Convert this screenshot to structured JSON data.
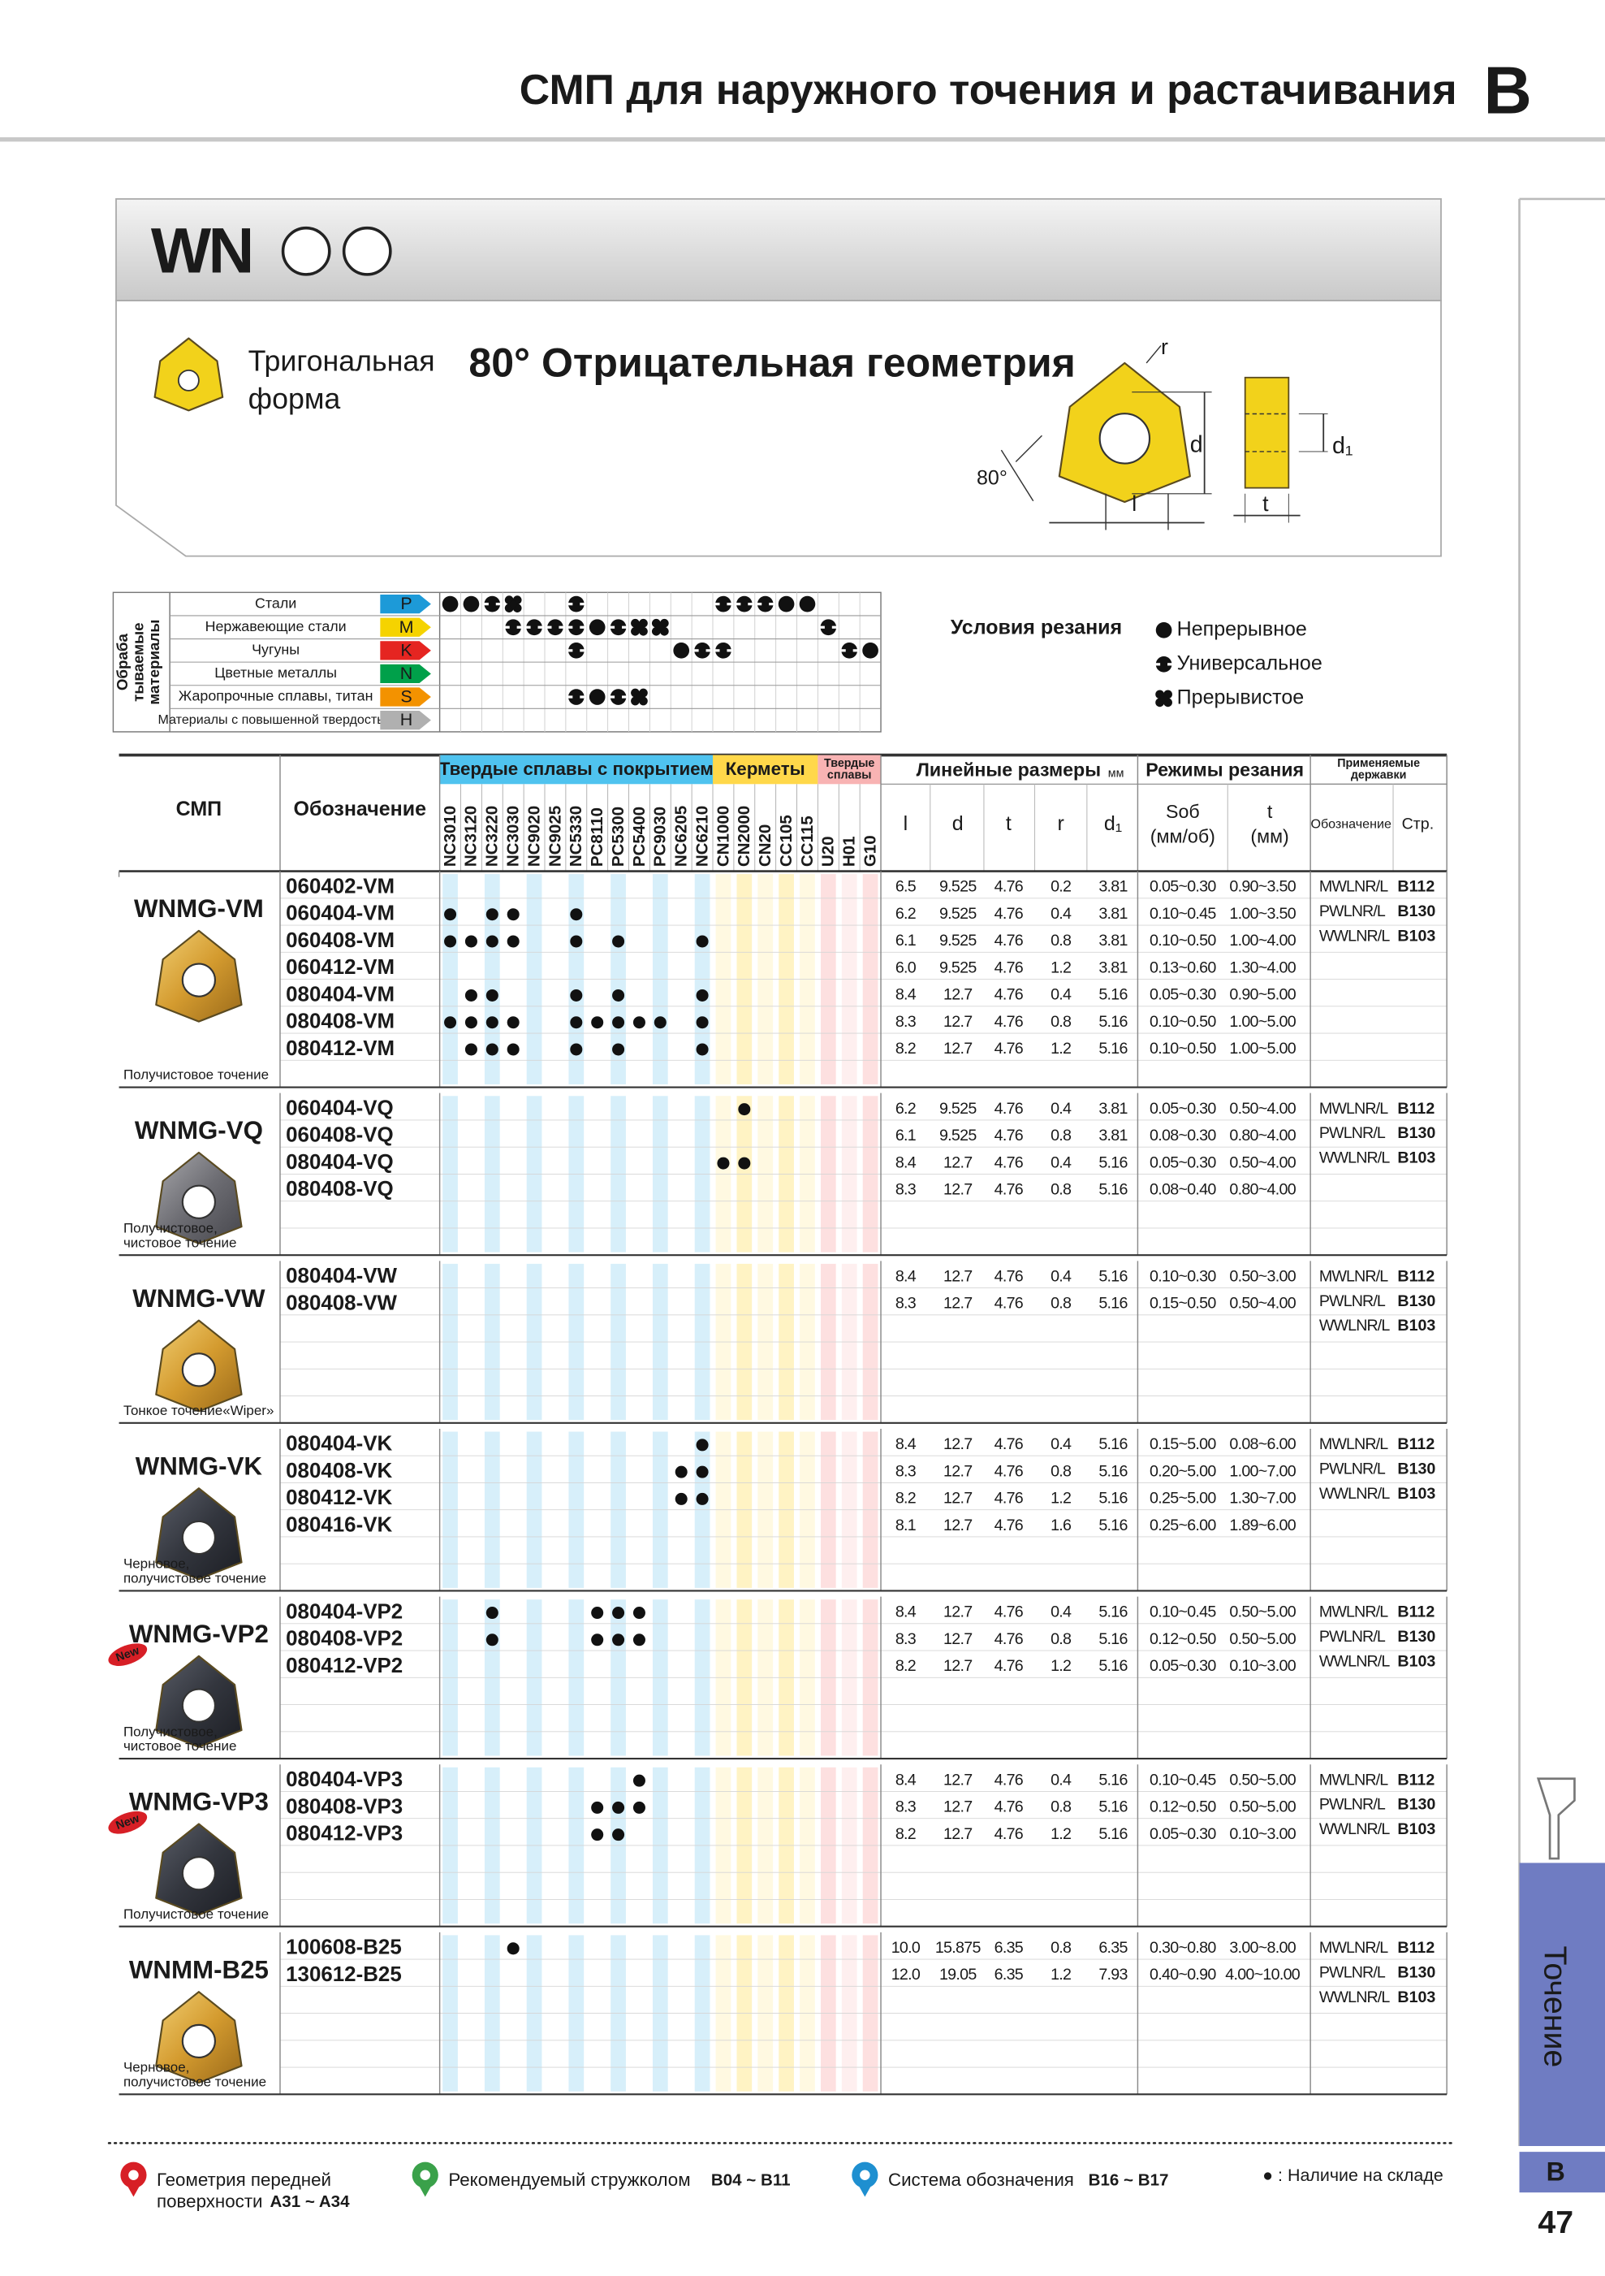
{
  "header": {
    "title": "СМП для наружного точения и растачивания",
    "section": "B"
  },
  "product": {
    "series": "WN",
    "shape": [
      "Тригональная",
      "форма"
    ],
    "geometry": "80° Отрицательная геометрия",
    "diagram": {
      "r": "r",
      "d": "d",
      "d1": "d₁",
      "angle": "80°",
      "l": "l",
      "t": "t"
    }
  },
  "materials": {
    "label": [
      "Обраба",
      "тываемые",
      "материалы"
    ],
    "rows": [
      {
        "name": "Стали",
        "code": "P",
        "conditions": {
          "NC3010": "Непрерывное",
          "NC3120": "Непрерывное",
          "NC3220": "Универсальное",
          "NC3030": "Прерывистое",
          "NC5330": "Универсальное",
          "CN1000": "Универсальное",
          "CN2000": "Универсальное",
          "CN20": "Универсальное",
          "CC105": "Непрерывное",
          "CC115": "Непрерывное"
        }
      },
      {
        "name": "Нержавеющие стали",
        "code": "M",
        "conditions": {
          "NC3030": "Универсальное",
          "NC9020": "Универсальное",
          "NC9025": "Универсальное",
          "NC5330": "Универсальное",
          "PC8110": "Непрерывное",
          "PC5300": "Универсальное",
          "PC5400": "Прерывистое",
          "PC9030": "Прерывистое",
          "U20": "Универсальное"
        }
      },
      {
        "name": "Чугуны",
        "code": "K",
        "conditions": {
          "NC5330": "Универсальное",
          "NC6205": "Непрерывное",
          "NC6210": "Универсальное",
          "CN1000": "Универсальное",
          "H01": "Универсальное",
          "G10": "Непрерывное"
        }
      },
      {
        "name": "Цветные металлы",
        "code": "N",
        "conditions": {}
      },
      {
        "name": "Жаропрочные сплавы, титан",
        "code": "S",
        "conditions": {
          "NC5330": "Универсальное",
          "PC8110": "Непрерывное",
          "PC5300": "Универсальное",
          "PC5400": "Прерывистое"
        }
      },
      {
        "name": "Материалы с повышенной твердостью",
        "code": "H",
        "conditions": {}
      }
    ]
  },
  "conditions": {
    "title": "Условия резания",
    "legend": [
      "Непрерывное",
      "Универсальное",
      "Прерывистое"
    ]
  },
  "table": {
    "col_insert": "СМП",
    "col_code": "Обозначение",
    "groups": [
      {
        "name": "Твердые сплавы с покрытием",
        "count": 13
      },
      {
        "name": "Керметы",
        "count": 5
      },
      {
        "name": [
          "Твердые",
          "сплавы"
        ],
        "count": 3
      }
    ],
    "grades": [
      "NC3010",
      "NC3120",
      "NC3220",
      "NC3030",
      "NC9020",
      "NC9025",
      "NC5330",
      "PC8110",
      "PC5300",
      "PC5400",
      "PC9030",
      "NC6205",
      "NC6210",
      "CN1000",
      "CN2000",
      "CN20",
      "CC105",
      "CC115",
      "U20",
      "H01",
      "G10"
    ],
    "dims_title": "Линейные размеры",
    "dims_unit": "мм",
    "dims": [
      "l",
      "d",
      "t",
      "r",
      "d₁"
    ],
    "cutting_title": "Режимы резания",
    "feed": [
      "Sоб",
      "(мм/об)"
    ],
    "depth": [
      "t",
      "(мм)"
    ],
    "holders_title": [
      "Применяемые",
      "державки"
    ],
    "holder_code": "Обозначение",
    "holder_page": "Стр."
  },
  "inserts": [
    {
      "name": "WNMG-VM",
      "color": "gold",
      "desc": [
        "Получистовое точение"
      ],
      "holders": [
        [
          "MWLNR/L",
          "B112"
        ],
        [
          "PWLNR/L",
          "B130"
        ],
        [
          "WWLNR/L",
          "B103"
        ]
      ],
      "rows": [
        {
          "code": "060402-VM",
          "l": "6.5",
          "d": "9.525",
          "t": "4.76",
          "r": "0.2",
          "d1": "3.81",
          "feed": "0.05~0.30",
          "depth": "0.90~3.50",
          "stock": []
        },
        {
          "code": "060404-VM",
          "l": "6.2",
          "d": "9.525",
          "t": "4.76",
          "r": "0.4",
          "d1": "3.81",
          "feed": "0.10~0.45",
          "depth": "1.00~3.50",
          "stock": [
            "NC3010",
            "NC3220",
            "NC3030",
            "NC5330"
          ]
        },
        {
          "code": "060408-VM",
          "l": "6.1",
          "d": "9.525",
          "t": "4.76",
          "r": "0.8",
          "d1": "3.81",
          "feed": "0.10~0.50",
          "depth": "1.00~4.00",
          "stock": [
            "NC3010",
            "NC3120",
            "NC3220",
            "NC3030",
            "NC5330",
            "PC5300",
            "NC6210"
          ]
        },
        {
          "code": "060412-VM",
          "l": "6.0",
          "d": "9.525",
          "t": "4.76",
          "r": "1.2",
          "d1": "3.81",
          "feed": "0.13~0.60",
          "depth": "1.30~4.00",
          "stock": []
        },
        {
          "code": "080404-VM",
          "l": "8.4",
          "d": "12.7",
          "t": "4.76",
          "r": "0.4",
          "d1": "5.16",
          "feed": "0.05~0.30",
          "depth": "0.90~5.00",
          "stock": [
            "NC3120",
            "NC3220",
            "NC5330",
            "PC5300",
            "NC6210"
          ]
        },
        {
          "code": "080408-VM",
          "l": "8.3",
          "d": "12.7",
          "t": "4.76",
          "r": "0.8",
          "d1": "5.16",
          "feed": "0.10~0.50",
          "depth": "1.00~5.00",
          "stock": [
            "NC3010",
            "NC3120",
            "NC3220",
            "NC3030",
            "NC5330",
            "PC8110",
            "PC5300",
            "PC5400",
            "PC9030",
            "NC6210"
          ]
        },
        {
          "code": "080412-VM",
          "l": "8.2",
          "d": "12.7",
          "t": "4.76",
          "r": "1.2",
          "d1": "5.16",
          "feed": "0.10~0.50",
          "depth": "1.00~5.00",
          "stock": [
            "NC3120",
            "NC3220",
            "NC3030",
            "NC5330",
            "PC5300",
            "NC6210"
          ]
        }
      ]
    },
    {
      "name": "WNMG-VQ",
      "color": "silver",
      "desc": [
        "Получистовое,",
        "чистовое точение"
      ],
      "holders": [
        [
          "MWLNR/L",
          "B112"
        ],
        [
          "PWLNR/L",
          "B130"
        ],
        [
          "WWLNR/L",
          "B103"
        ]
      ],
      "rows": [
        {
          "code": "060404-VQ",
          "l": "6.2",
          "d": "9.525",
          "t": "4.76",
          "r": "0.4",
          "d1": "3.81",
          "feed": "0.05~0.30",
          "depth": "0.50~4.00",
          "stock": [
            "CN2000"
          ]
        },
        {
          "code": "060408-VQ",
          "l": "6.1",
          "d": "9.525",
          "t": "4.76",
          "r": "0.8",
          "d1": "3.81",
          "feed": "0.08~0.30",
          "depth": "0.80~4.00",
          "stock": []
        },
        {
          "code": "080404-VQ",
          "l": "8.4",
          "d": "12.7",
          "t": "4.76",
          "r": "0.4",
          "d1": "5.16",
          "feed": "0.05~0.30",
          "depth": "0.50~4.00",
          "stock": [
            "CN1000",
            "CN2000"
          ]
        },
        {
          "code": "080408-VQ",
          "l": "8.3",
          "d": "12.7",
          "t": "4.76",
          "r": "0.8",
          "d1": "5.16",
          "feed": "0.08~0.40",
          "depth": "0.80~4.00",
          "stock": []
        }
      ]
    },
    {
      "name": "WNMG-VW",
      "color": "gold",
      "desc": [
        "Тонкое точение«Wiper»"
      ],
      "holders": [
        [
          "MWLNR/L",
          "B112"
        ],
        [
          "PWLNR/L",
          "B130"
        ],
        [
          "WWLNR/L",
          "B103"
        ]
      ],
      "rows": [
        {
          "code": "080404-VW",
          "l": "8.4",
          "d": "12.7",
          "t": "4.76",
          "r": "0.4",
          "d1": "5.16",
          "feed": "0.10~0.30",
          "depth": "0.50~3.00",
          "stock": []
        },
        {
          "code": "080408-VW",
          "l": "8.3",
          "d": "12.7",
          "t": "4.76",
          "r": "0.8",
          "d1": "5.16",
          "feed": "0.15~0.50",
          "depth": "0.50~4.00",
          "stock": []
        }
      ]
    },
    {
      "name": "WNMG-VK",
      "color": "dark",
      "desc": [
        "Черновое,",
        "получистовое точение"
      ],
      "holders": [
        [
          "MWLNR/L",
          "B112"
        ],
        [
          "PWLNR/L",
          "B130"
        ],
        [
          "WWLNR/L",
          "B103"
        ]
      ],
      "rows": [
        {
          "code": "080404-VK",
          "l": "8.4",
          "d": "12.7",
          "t": "4.76",
          "r": "0.4",
          "d1": "5.16",
          "feed": "0.15~5.00",
          "depth": "0.08~6.00",
          "stock": [
            "NC6210"
          ]
        },
        {
          "code": "080408-VK",
          "l": "8.3",
          "d": "12.7",
          "t": "4.76",
          "r": "0.8",
          "d1": "5.16",
          "feed": "0.20~5.00",
          "depth": "1.00~7.00",
          "stock": [
            "NC6205",
            "NC6210"
          ]
        },
        {
          "code": "080412-VK",
          "l": "8.2",
          "d": "12.7",
          "t": "4.76",
          "r": "1.2",
          "d1": "5.16",
          "feed": "0.25~5.00",
          "depth": "1.30~7.00",
          "stock": [
            "NC6205",
            "NC6210"
          ]
        },
        {
          "code": "080416-VK",
          "l": "8.1",
          "d": "12.7",
          "t": "4.76",
          "r": "1.6",
          "d1": "5.16",
          "feed": "0.25~6.00",
          "depth": "1.89~6.00",
          "stock": []
        }
      ]
    },
    {
      "name": "WNMG-VP2",
      "color": "dark",
      "badge": "New",
      "desc": [
        "Получистовое,",
        "чистовое точение"
      ],
      "holders": [
        [
          "MWLNR/L",
          "B112"
        ],
        [
          "PWLNR/L",
          "B130"
        ],
        [
          "WWLNR/L",
          "B103"
        ]
      ],
      "rows": [
        {
          "code": "080404-VP2",
          "l": "8.4",
          "d": "12.7",
          "t": "4.76",
          "r": "0.4",
          "d1": "5.16",
          "feed": "0.10~0.45",
          "depth": "0.50~5.00",
          "stock": [
            "NC3220",
            "PC8110",
            "PC5300",
            "PC5400"
          ]
        },
        {
          "code": "080408-VP2",
          "l": "8.3",
          "d": "12.7",
          "t": "4.76",
          "r": "0.8",
          "d1": "5.16",
          "feed": "0.12~0.50",
          "depth": "0.50~5.00",
          "stock": [
            "NC3220",
            "PC8110",
            "PC5300",
            "PC5400"
          ]
        },
        {
          "code": "080412-VP2",
          "l": "8.2",
          "d": "12.7",
          "t": "4.76",
          "r": "1.2",
          "d1": "5.16",
          "feed": "0.05~0.30",
          "depth": "0.10~3.00",
          "stock": []
        }
      ]
    },
    {
      "name": "WNMG-VP3",
      "color": "dark",
      "badge": "New",
      "desc": [
        "Получистовое точение"
      ],
      "holders": [
        [
          "MWLNR/L",
          "B112"
        ],
        [
          "PWLNR/L",
          "B130"
        ],
        [
          "WWLNR/L",
          "B103"
        ]
      ],
      "rows": [
        {
          "code": "080404-VP3",
          "l": "8.4",
          "d": "12.7",
          "t": "4.76",
          "r": "0.4",
          "d1": "5.16",
          "feed": "0.10~0.45",
          "depth": "0.50~5.00",
          "stock": [
            "PC5400"
          ]
        },
        {
          "code": "080408-VP3",
          "l": "8.3",
          "d": "12.7",
          "t": "4.76",
          "r": "0.8",
          "d1": "5.16",
          "feed": "0.12~0.50",
          "depth": "0.50~5.00",
          "stock": [
            "PC8110",
            "PC5300",
            "PC5400"
          ]
        },
        {
          "code": "080412-VP3",
          "l": "8.2",
          "d": "12.7",
          "t": "4.76",
          "r": "1.2",
          "d1": "5.16",
          "feed": "0.05~0.30",
          "depth": "0.10~3.00",
          "stock": [
            "PC8110",
            "PC5300"
          ]
        }
      ]
    },
    {
      "name": "WNMM-B25",
      "color": "gold",
      "desc": [
        "Черновое,",
        "получистовое точение"
      ],
      "holders": [
        [
          "MWLNR/L",
          "B112"
        ],
        [
          "PWLNR/L",
          "B130"
        ],
        [
          "WWLNR/L",
          "B103"
        ]
      ],
      "rows": [
        {
          "code": "100608-B25",
          "l": "10.0",
          "d": "15.875",
          "t": "6.35",
          "r": "0.8",
          "d1": "6.35",
          "feed": "0.30~0.80",
          "depth": "3.00~8.00",
          "stock": [
            "NC3030"
          ]
        },
        {
          "code": "130612-B25",
          "l": "12.0",
          "d": "19.05",
          "t": "6.35",
          "r": "1.2",
          "d1": "7.93",
          "feed": "0.40~0.90",
          "depth": "4.00~10.00",
          "stock": []
        }
      ]
    }
  ],
  "footer": {
    "items": [
      {
        "text": [
          "Геометрия передней",
          "поверхности"
        ],
        "ref": "A31 ~ A34"
      },
      {
        "text": [
          "Рекомендуемый стружколом"
        ],
        "ref": "B04 ~ B11"
      },
      {
        "text": [
          "Система обозначения"
        ],
        "ref": "B16 ~ B17"
      }
    ],
    "stock_note": "● : Наличие на складе"
  },
  "side": {
    "tab": "Точение",
    "section": "B",
    "page": "47"
  }
}
